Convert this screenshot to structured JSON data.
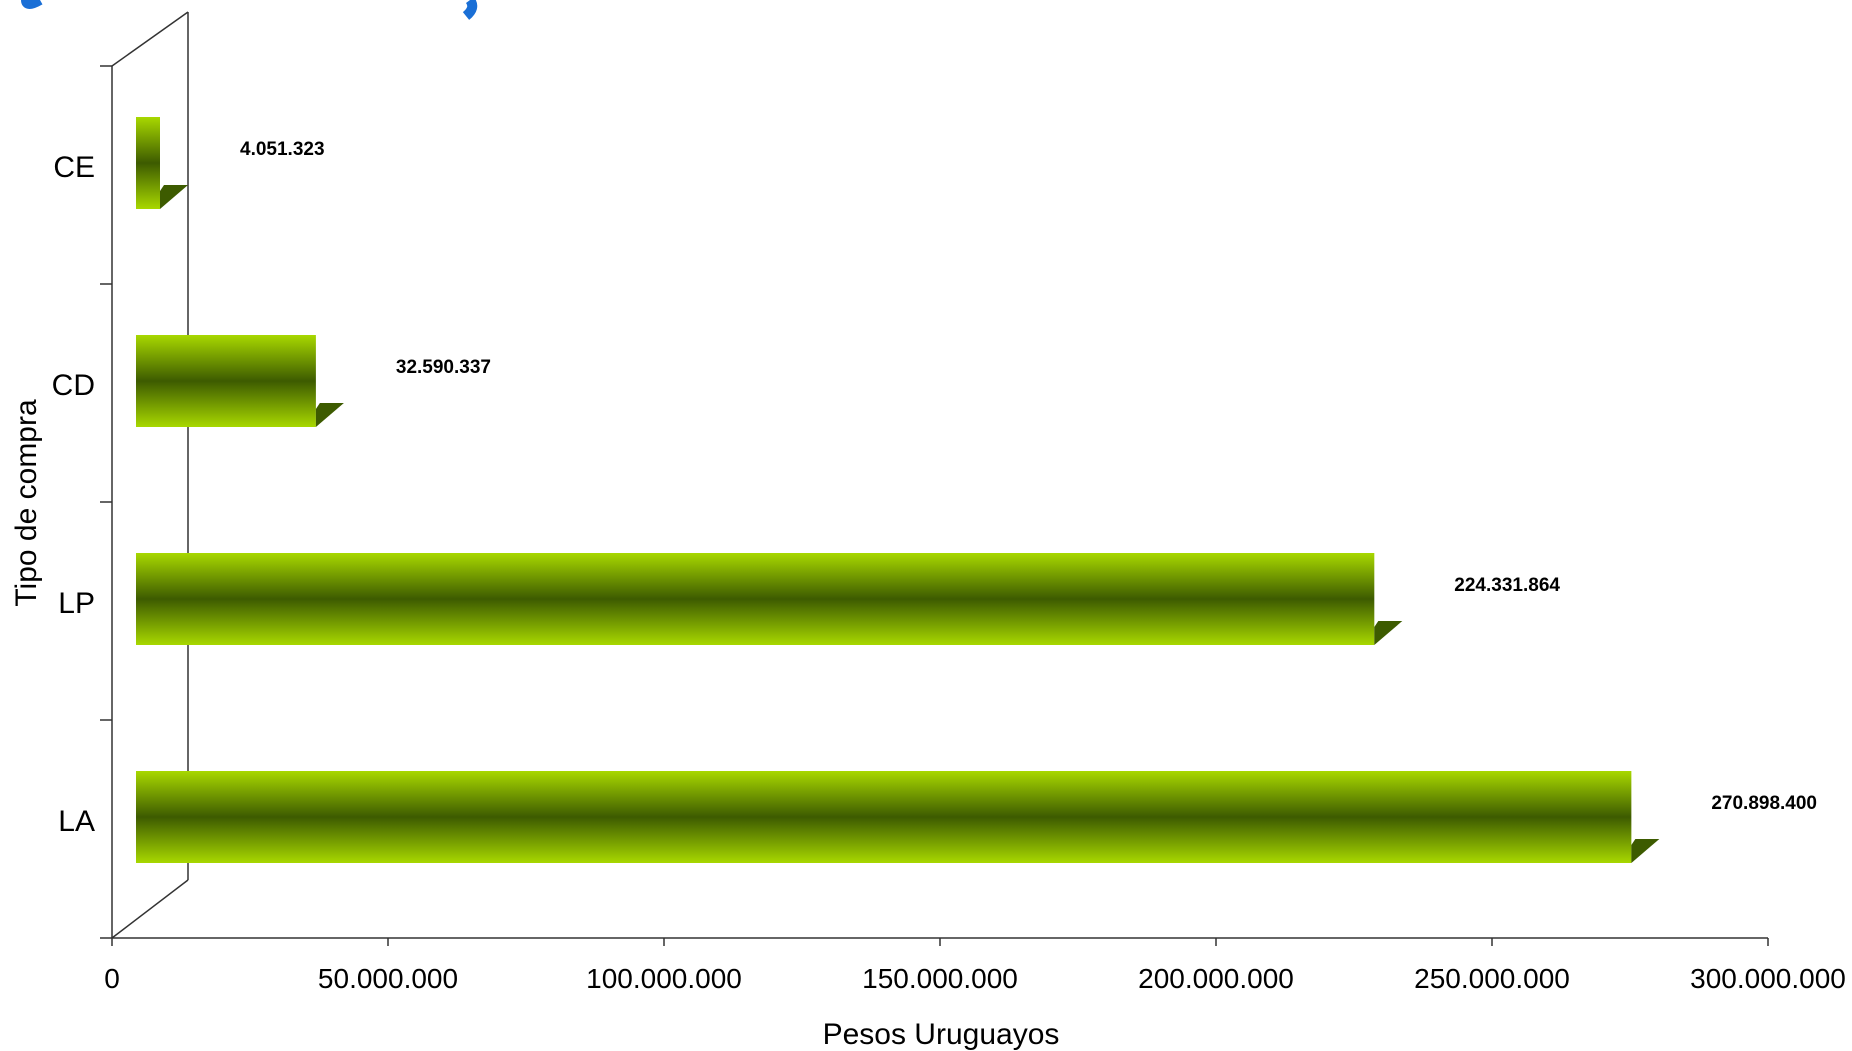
{
  "chart_data": {
    "type": "bar",
    "orientation": "horizontal",
    "categories": [
      "CE",
      "CD",
      "LP",
      "LA"
    ],
    "values": [
      4051323,
      32590337,
      224331864,
      270898400
    ],
    "data_labels": [
      "4.051.323",
      "32.590.337",
      "224.331.864",
      "270.898.400"
    ],
    "xlabel": "Pesos Uruguayos",
    "ylabel": "Tipo de compra",
    "xlim": [
      0,
      300000000
    ],
    "x_ticks": [
      0,
      50000000,
      100000000,
      150000000,
      200000000,
      250000000,
      300000000
    ],
    "x_tick_labels": [
      "0",
      "50.000.000",
      "100.000.000",
      "150.000.000",
      "200.000.000",
      "250.000.000",
      "300.000.000"
    ],
    "grid": false,
    "legend": "none",
    "colors": {
      "bar_light": "#99cc00",
      "bar_dark": "#3d5b00",
      "axis": "#555555",
      "title_fragment": "#1a6fd6"
    }
  }
}
